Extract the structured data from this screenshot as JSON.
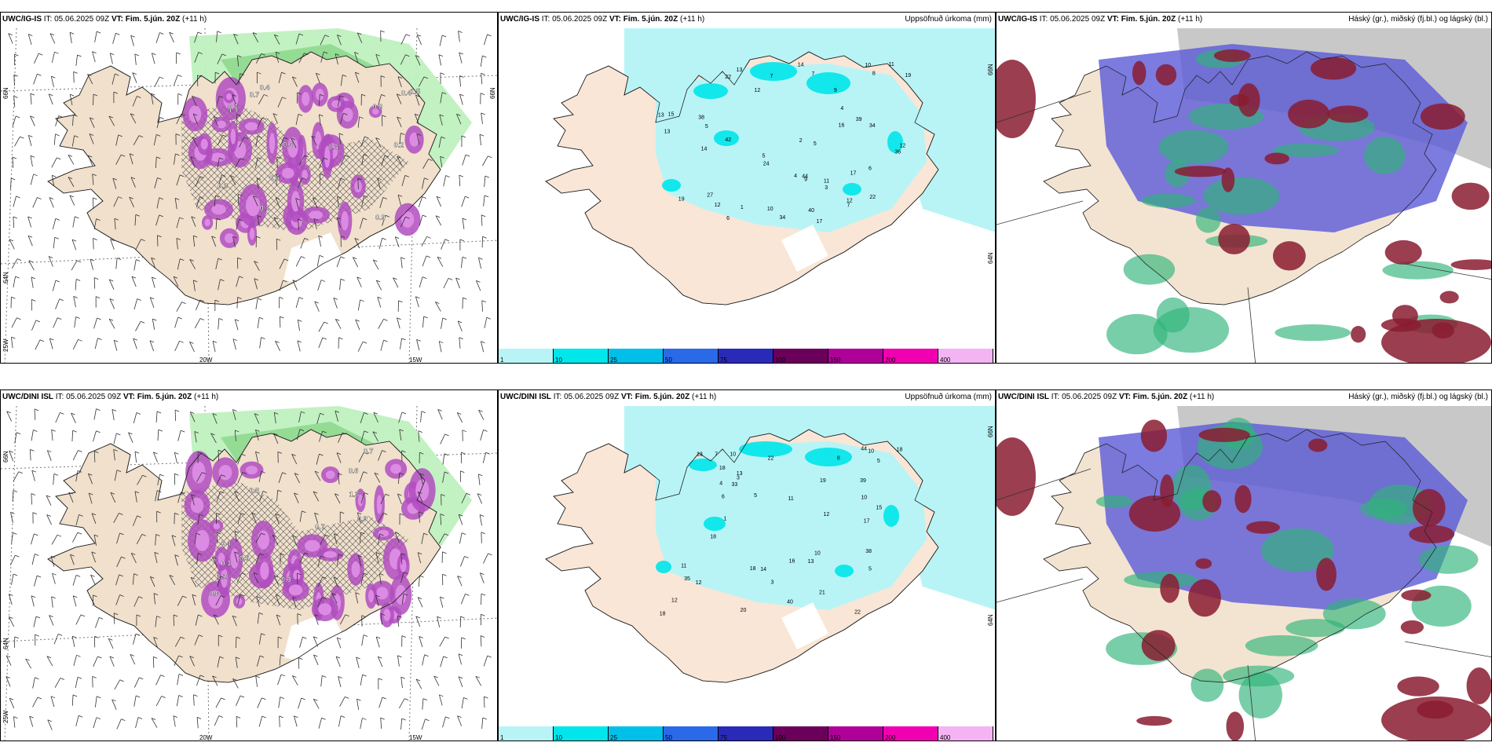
{
  "rows": [
    {
      "model": "UWC/IG-IS",
      "it": "IT: 05.06.2025 09Z",
      "vt_label": "VT:",
      "vt_value": "Fim. 5.jún. 20Z",
      "lead": "(+11 h)"
    },
    {
      "model": "UWC/DINI ISL",
      "it": "IT: 05.06.2025 09Z",
      "vt_label": "VT:",
      "vt_value": "Fim. 5.jún. 20Z",
      "lead": "(+11 h)"
    }
  ],
  "precip_title": "Uppsöfnuð úrkoma (mm)",
  "cloud_title": "Háský (gr.), miðský (fj.bl.) og lágský (bl.)",
  "axes": {
    "lat66": "66N",
    "lat64": "64N",
    "lon20": "20W",
    "lon15": "15W",
    "lon25": "25W"
  },
  "colorbar": {
    "labels": [
      "1",
      "10",
      "25",
      "50",
      "75",
      "100",
      "150",
      "200",
      "400"
    ],
    "colors": [
      "#b8f4f6",
      "#00e6ea",
      "#00c0ea",
      "#2a6ae8",
      "#2a2ab8",
      "#6a005a",
      "#b0009a",
      "#f000b0",
      "#f4b4f4"
    ]
  },
  "precip_values_top": [
    "17",
    "22",
    "27",
    "38",
    "39",
    "40",
    "36",
    "42",
    "24",
    "12",
    "19",
    "13",
    "5",
    "44",
    "16",
    "10",
    "13",
    "8",
    "17",
    "34",
    "12",
    "9",
    "6",
    "7",
    "5",
    "4",
    "14",
    "5",
    "34",
    "12",
    "3",
    "11",
    "9",
    "1",
    "13",
    "10",
    "14",
    "15",
    "12",
    "11",
    "7",
    "2",
    "19",
    "22",
    "7",
    "6",
    "4"
  ],
  "precip_values_bottom": [
    "10",
    "18",
    "18",
    "38",
    "39",
    "40",
    "44",
    "22",
    "21",
    "11",
    "16",
    "19",
    "12",
    "18",
    "15",
    "18",
    "12",
    "10",
    "33",
    "8",
    "6",
    "7",
    "5",
    "35",
    "12",
    "3",
    "11",
    "14",
    "17",
    "10",
    "13",
    "1",
    "10",
    "18",
    "13",
    "20",
    "22",
    "5",
    "4",
    "3",
    "13",
    "5"
  ],
  "contour_labels_top": [
    "0.7",
    "0.2",
    "0.6",
    "0.9",
    "0.3",
    "1.1",
    "0.3",
    "0.1",
    "0.6",
    "0.4",
    "0.8",
    "0.4",
    "0.7",
    "1.5"
  ],
  "contour_labels_bottom": [
    "0.7",
    "0.8",
    "1.3",
    "0.6",
    "0.7",
    "0.9",
    "0.6",
    "0.3",
    "1.2",
    "0.5",
    "0.4",
    "0.3"
  ]
}
